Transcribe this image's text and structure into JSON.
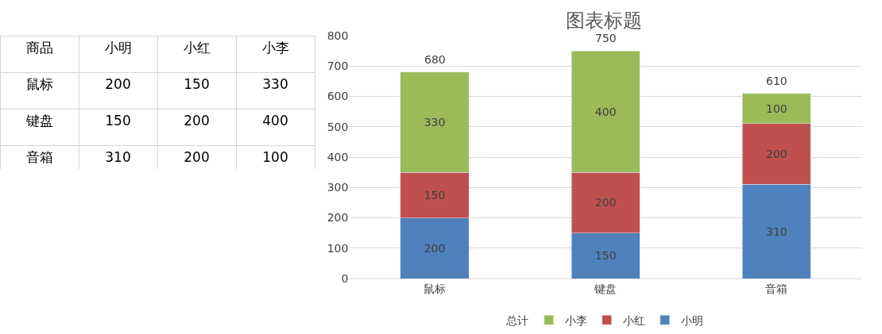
{
  "chart_data": {
    "type": "bar",
    "title": "图表标题",
    "stacked": true,
    "categories": [
      "鼠标",
      "键盘",
      "音箱"
    ],
    "series": [
      {
        "name": "小明",
        "color": "#4f81bd",
        "values": [
          200,
          150,
          310
        ]
      },
      {
        "name": "小红",
        "color": "#c0504d",
        "values": [
          150,
          200,
          200
        ]
      },
      {
        "name": "小李",
        "color": "#9bbb59",
        "values": [
          330,
          400,
          100
        ]
      },
      {
        "name": "总计",
        "type": "line",
        "color": null,
        "values": [
          null,
          null,
          null
        ]
      }
    ],
    "totals": [
      "680",
      "750",
      "610"
    ],
    "annotations": [
      "商品",
      "小明",
      "小红",
      "小李",
      "鼠标",
      "200",
      "150",
      "330",
      "键盘",
      "150",
      "200",
      "400",
      "音箱",
      "310",
      "200",
      "100"
    ],
    "ylim": [
      0,
      800
    ],
    "yticks": [
      0,
      100,
      200,
      300,
      400,
      500,
      600,
      700,
      800
    ],
    "grid": "y",
    "legend": "bottom",
    "data_labels": true
  }
}
